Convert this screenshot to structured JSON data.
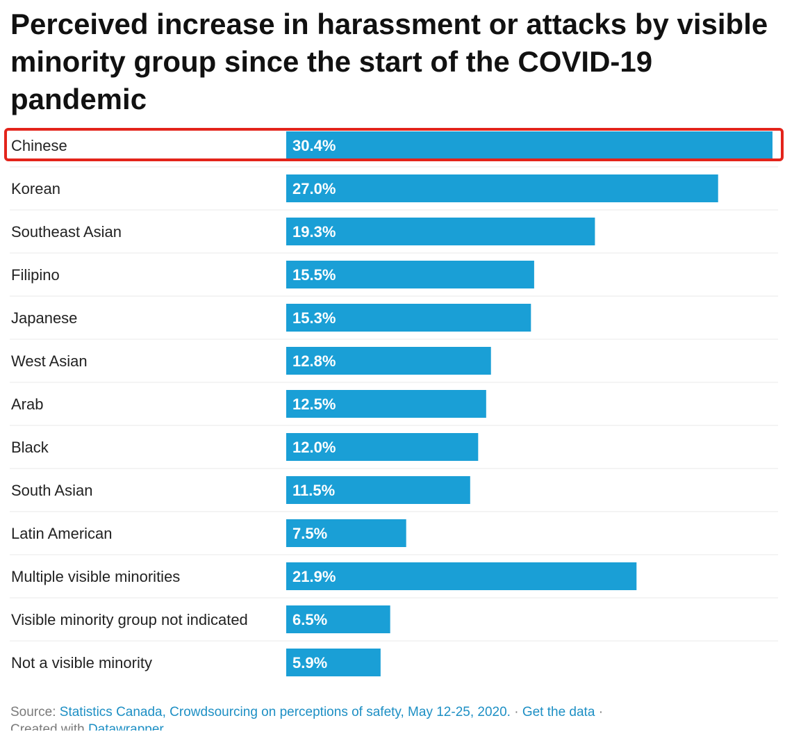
{
  "title": "Perceived increase in harassment or attacks by visible minority group since the start of the COVID-19 pandemic",
  "colors": {
    "bar": "#1a9fd6",
    "bar_label": "#ffffff",
    "row_label": "#222222",
    "divider": "#e9e9e9",
    "highlight": "#e3241b"
  },
  "chart_data": {
    "type": "bar",
    "orientation": "horizontal",
    "title": "Perceived increase in harassment or attacks by visible minority group since the start of the COVID-19 pandemic",
    "categories": [
      "Chinese",
      "Korean",
      "Southeast Asian",
      "Filipino",
      "Japanese",
      "West Asian",
      "Arab",
      "Black",
      "South Asian",
      "Latin American",
      "Multiple visible minorities",
      "Visible minority group not indicated",
      "Not a visible minority"
    ],
    "values": [
      30.4,
      27.0,
      19.3,
      15.5,
      15.3,
      12.8,
      12.5,
      12.0,
      11.5,
      7.5,
      21.9,
      6.5,
      5.9
    ],
    "value_labels": [
      "30.4%",
      "27.0%",
      "19.3%",
      "15.5%",
      "15.3%",
      "12.8%",
      "12.5%",
      "12.0%",
      "11.5%",
      "7.5%",
      "21.9%",
      "6.5%",
      "5.9%"
    ],
    "unit": "%",
    "xlim": [
      0,
      30.4
    ],
    "highlighted_category": "Chinese",
    "xlabel": "",
    "ylabel": ""
  },
  "footer": {
    "source_prefix": "Source:",
    "source_link": "Statistics Canada, Crowdsourcing on perceptions of safety, May 12-25, 2020.",
    "separator": "·",
    "get_data": "Get the data",
    "separator2": "·",
    "created_with": "Created with",
    "tool": "Datawrapper"
  }
}
